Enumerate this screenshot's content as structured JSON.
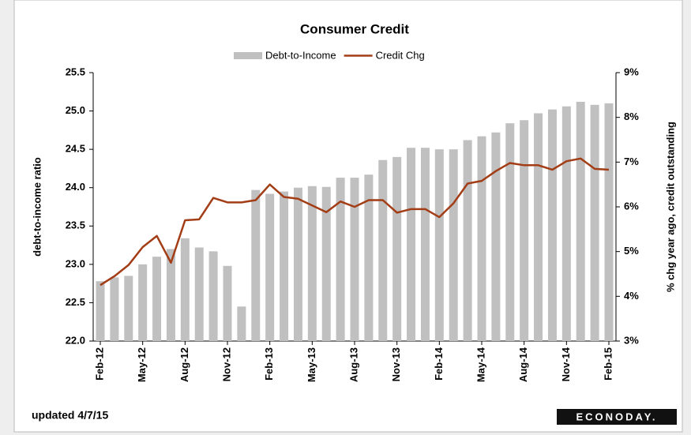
{
  "chart_data": {
    "type": "bar",
    "title": "Consumer Credit",
    "y_label": "debt-to-income ratio",
    "y2_label": "% chg year ago, credit outstanding",
    "footnote": "updated 4/7/15",
    "source": "ECONODAY.",
    "categories": [
      "Feb-12",
      null,
      null,
      "May-12",
      null,
      null,
      "Aug-12",
      null,
      null,
      "Nov-12",
      null,
      null,
      "Feb-13",
      null,
      null,
      "May-13",
      null,
      null,
      "Aug-13",
      null,
      null,
      "Nov-13",
      null,
      null,
      "Feb-14",
      null,
      null,
      "May-14",
      null,
      null,
      "Aug-14",
      null,
      null,
      "Nov-14",
      null,
      null,
      "Feb-15"
    ],
    "series": [
      {
        "name": "Debt-to-Income",
        "type": "bar",
        "axis": "y",
        "color": "#c0c0c0",
        "values": [
          22.78,
          22.83,
          22.85,
          23.0,
          23.1,
          23.2,
          23.34,
          23.22,
          23.17,
          22.98,
          22.45,
          23.97,
          23.92,
          23.95,
          24.0,
          24.02,
          24.01,
          24.13,
          24.13,
          24.17,
          24.36,
          24.4,
          24.52,
          24.52,
          24.5,
          24.5,
          24.62,
          24.67,
          24.72,
          24.84,
          24.88,
          24.97,
          25.02,
          25.06,
          25.12,
          25.08,
          25.1
        ]
      },
      {
        "name": "Credit Chg",
        "type": "line",
        "axis": "y2",
        "color": "#a23d16",
        "values": [
          4.25,
          4.45,
          4.7,
          5.1,
          5.35,
          4.75,
          5.7,
          5.72,
          6.2,
          6.1,
          6.1,
          6.15,
          6.5,
          6.22,
          6.18,
          6.03,
          5.88,
          6.12,
          6.0,
          6.15,
          6.15,
          5.87,
          5.95,
          5.95,
          5.77,
          6.08,
          6.52,
          6.58,
          6.8,
          6.98,
          6.93,
          6.93,
          6.83,
          7.02,
          7.08,
          6.85,
          6.83
        ]
      }
    ],
    "ylim": [
      22.0,
      25.5
    ],
    "yticks": [
      {
        "value": 22.0,
        "label": "22.0"
      },
      {
        "value": 22.5,
        "label": "22.5"
      },
      {
        "value": 23.0,
        "label": "23.0"
      },
      {
        "value": 23.5,
        "label": "23.5"
      },
      {
        "value": 24.0,
        "label": "24.0"
      },
      {
        "value": 24.5,
        "label": "24.5"
      },
      {
        "value": 25.0,
        "label": "25.0"
      },
      {
        "value": 25.5,
        "label": "25.5"
      }
    ],
    "y2lim": [
      3,
      9
    ],
    "y2ticks": [
      {
        "value": 3,
        "label": "3%"
      },
      {
        "value": 4,
        "label": "4%"
      },
      {
        "value": 5,
        "label": "5%"
      },
      {
        "value": 6,
        "label": "6%"
      },
      {
        "value": 7,
        "label": "7%"
      },
      {
        "value": 8,
        "label": "8%"
      },
      {
        "value": 9,
        "label": "9%"
      }
    ],
    "legend": "top",
    "grid": false
  }
}
